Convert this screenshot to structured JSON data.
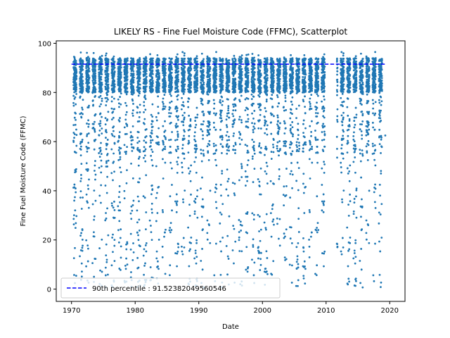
{
  "chart_data": {
    "type": "scatter",
    "title": "LIKELY RS - Fine Fuel Moisture Code (FFMC), Scatterplot",
    "xlabel": "Date",
    "ylabel": "Fine Fuel Moisture Code (FFMC)",
    "xlim": [
      1967.6,
      2022.4
    ],
    "ylim": [
      -5,
      101
    ],
    "xticks": [
      1970,
      1980,
      1990,
      2000,
      2010,
      2020
    ],
    "xtick_labels": [
      "1970",
      "1980",
      "1990",
      "2000",
      "2010",
      "2020"
    ],
    "yticks": [
      0,
      20,
      40,
      60,
      80,
      100
    ],
    "ytick_labels": [
      "0",
      "20",
      "40",
      "60",
      "80",
      "100"
    ],
    "grid": false,
    "legend_position": "lower-left",
    "colors": {
      "points": "#1f77b4",
      "percentile_line": "#0000ff"
    },
    "percentile_line": {
      "label": "90th percentile : 91.52382049560546",
      "value": 91.52382049560546,
      "x_range": [
        1970,
        2019.4
      ]
    },
    "series": [
      {
        "description_gaps": [
          [
            2010.0,
            2011.7
          ]
        ],
        "x_range": [
          1970.3,
          2019.3
        ],
        "seasons": {
          "start_year": 1970,
          "end_year": 2019,
          "season_start_fraction": 0.3,
          "season_end_fraction": 0.8
        },
        "y_range": [
          0.5,
          96.5
        ],
        "density_note": "dense cluster near 85-95 each fire season, sparse scatter down to ~0"
      }
    ]
  }
}
